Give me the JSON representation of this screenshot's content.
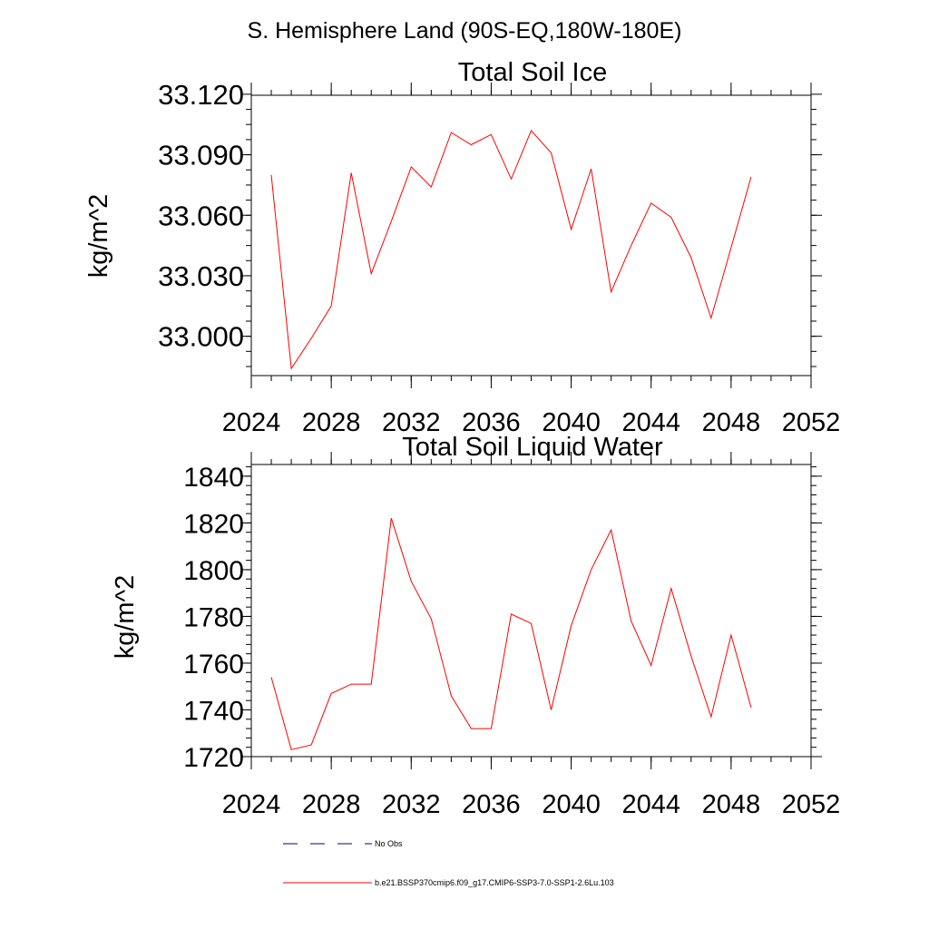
{
  "figure": {
    "title": "S. Hemisphere Land (90S-EQ,180W-180E)"
  },
  "chart_data": [
    {
      "type": "line",
      "title": "Total Soil Ice",
      "xlabel": "",
      "ylabel": "kg/m^2",
      "xlim": [
        2024,
        2052
      ],
      "ylim": [
        32.9805,
        33.1195
      ],
      "xticks": [
        "2024",
        "2028",
        "2032",
        "2036",
        "2040",
        "2044",
        "2048",
        "2052"
      ],
      "yticks": [
        "33.000",
        "33.030",
        "33.060",
        "33.090",
        "33.120"
      ],
      "grid": false,
      "series": [
        {
          "name": "b.e21.BSSP370cmip6.f09_g17.CMIP6-SSP3-7.0-SSP1-2.6Lu.103",
          "color": "#ff0000",
          "x": [
            2025,
            2026,
            2027,
            2028,
            2029,
            2030,
            2031,
            2032,
            2033,
            2034,
            2035,
            2036,
            2037,
            2038,
            2039,
            2040,
            2041,
            2042,
            2043,
            2044,
            2045,
            2046,
            2047,
            2048,
            2049
          ],
          "y": [
            33.08,
            32.984,
            32.999,
            33.015,
            33.081,
            33.031,
            33.057,
            33.084,
            33.074,
            33.101,
            33.095,
            33.1,
            33.078,
            33.102,
            33.091,
            33.053,
            33.083,
            33.022,
            33.045,
            33.066,
            33.059,
            33.039,
            33.009,
            33.044,
            33.079
          ]
        }
      ]
    },
    {
      "type": "line",
      "title": "Total Soil Liquid Water",
      "xlabel": "",
      "ylabel": "kg/m^2",
      "xlim": [
        2024,
        2052
      ],
      "ylim": [
        1720,
        1845
      ],
      "xticks": [
        "2024",
        "2028",
        "2032",
        "2036",
        "2040",
        "2044",
        "2048",
        "2052"
      ],
      "yticks": [
        "1720",
        "1740",
        "1760",
        "1780",
        "1800",
        "1820",
        "1840"
      ],
      "grid": false,
      "series": [
        {
          "name": "b.e21.BSSP370cmip6.f09_g17.CMIP6-SSP3-7.0-SSP1-2.6Lu.103",
          "color": "#ff0000",
          "x": [
            2025,
            2026,
            2027,
            2028,
            2029,
            2030,
            2031,
            2032,
            2033,
            2034,
            2035,
            2036,
            2037,
            2038,
            2039,
            2040,
            2041,
            2042,
            2043,
            2044,
            2045,
            2046,
            2047,
            2048,
            2049
          ],
          "y": [
            1754,
            1723,
            1725,
            1747,
            1751,
            1751,
            1822,
            1795,
            1779,
            1746,
            1732,
            1732,
            1781,
            1777,
            1740,
            1776,
            1800,
            1817,
            1778,
            1759,
            1792,
            1763,
            1737,
            1772,
            1741
          ]
        }
      ]
    }
  ],
  "legend": {
    "items": [
      {
        "label": "No Obs",
        "color": "#000080",
        "style": "dashed"
      },
      {
        "label": "b.e21.BSSP370cmip6.f09_g17.CMIP6-SSP3-7.0-SSP1-2.6Lu.103",
        "color": "#ff0000",
        "style": "solid"
      }
    ]
  }
}
